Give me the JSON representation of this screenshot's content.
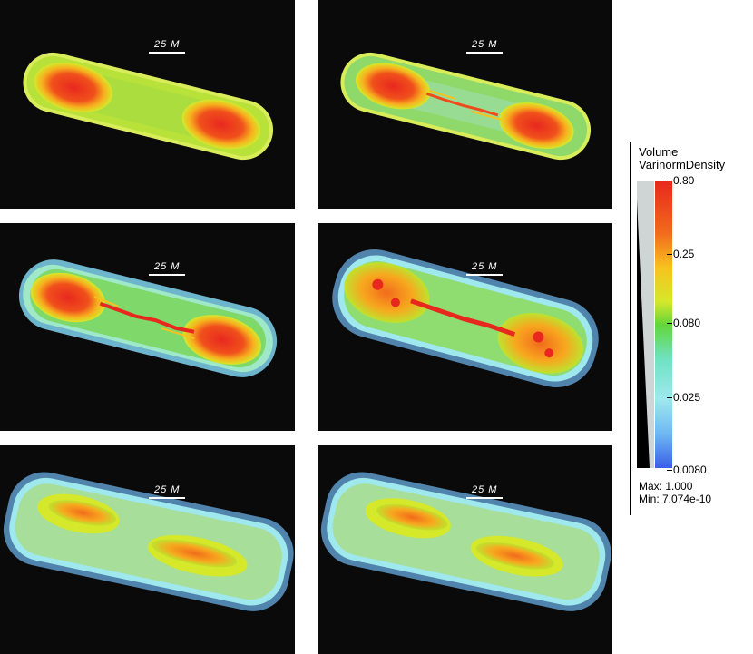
{
  "panels": [
    {
      "scale_label": "25 M"
    },
    {
      "scale_label": "25 M"
    },
    {
      "scale_label": "25 M"
    },
    {
      "scale_label": "25 M"
    },
    {
      "scale_label": "25 M"
    },
    {
      "scale_label": "25 M"
    }
  ],
  "legend": {
    "title_line1": "Volume",
    "title_line2": "VarinormDensity",
    "ticks": [
      "0.80",
      "0.25",
      "0.080",
      "0.025",
      "0.0080"
    ],
    "max_label": "Max: 1.000",
    "min_label": "Min: 7.074e-10",
    "colors": [
      "#e8281e",
      "#f26b1c",
      "#f7c21e",
      "#d6e82a",
      "#62d63a",
      "#6fe2c2",
      "#9fe8ee",
      "#6fb8f2",
      "#3a5ee8"
    ]
  }
}
